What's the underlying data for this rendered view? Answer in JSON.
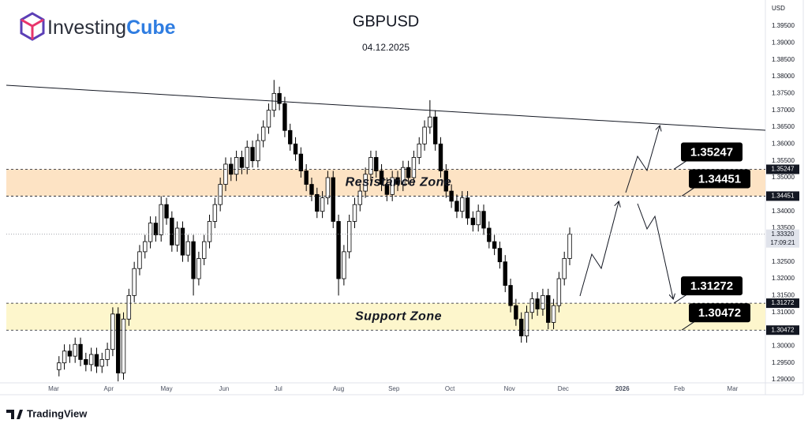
{
  "branding": {
    "part1": "Investing",
    "part2": "Cube"
  },
  "footer": "TradingView",
  "chart_data": {
    "type": "candlestick",
    "title": "GBPUSD",
    "subtitle": "04.12.2025",
    "currency": "USD",
    "grid": false,
    "up_color": "#ffffff",
    "down_color": "#000000",
    "outline_color": "#000000",
    "ylim": [
      1.289,
      1.401
    ],
    "xlim": [
      -9.8,
      131.4
    ],
    "yticks": [
      {
        "value": 1.29,
        "label": "1.29000"
      },
      {
        "value": 1.295,
        "label": "1.29500"
      },
      {
        "value": 1.3,
        "label": "1.30000"
      },
      {
        "value": 1.31,
        "label": "1.31000"
      },
      {
        "value": 1.315,
        "label": "1.31500"
      },
      {
        "value": 1.32,
        "label": "1.32000"
      },
      {
        "value": 1.325,
        "label": "1.32500"
      },
      {
        "value": 1.335,
        "label": "1.33500"
      },
      {
        "value": 1.34,
        "label": "1.34000"
      },
      {
        "value": 1.35,
        "label": "1.35000"
      },
      {
        "value": 1.355,
        "label": "1.35500"
      },
      {
        "value": 1.36,
        "label": "1.36000"
      },
      {
        "value": 1.365,
        "label": "1.36500"
      },
      {
        "value": 1.37,
        "label": "1.37000"
      },
      {
        "value": 1.375,
        "label": "1.37500"
      },
      {
        "value": 1.38,
        "label": "1.38000"
      },
      {
        "value": 1.385,
        "label": "1.38500"
      },
      {
        "value": 1.39,
        "label": "1.39000"
      },
      {
        "value": 1.395,
        "label": "1.39500"
      }
    ],
    "xticks": [
      {
        "value": -1.0,
        "label": "Mar"
      },
      {
        "value": 9.25,
        "label": "Apr"
      },
      {
        "value": 20.0,
        "label": "May"
      },
      {
        "value": 30.7,
        "label": "Jun"
      },
      {
        "value": 40.8,
        "label": "Jul"
      },
      {
        "value": 52.0,
        "label": "Aug"
      },
      {
        "value": 62.3,
        "label": "Sep"
      },
      {
        "value": 72.7,
        "label": "Oct"
      },
      {
        "value": 83.8,
        "label": "Nov"
      },
      {
        "value": 93.8,
        "label": "Dec"
      },
      {
        "value": 104.8,
        "label": "2026"
      },
      {
        "value": 115.4,
        "label": "Feb"
      },
      {
        "value": 125.3,
        "label": "Mar"
      }
    ],
    "zones": [
      {
        "name": "Resistance Zone",
        "color": "#fde3c4",
        "upper": {
          "value": 1.35247,
          "label": "1.35247"
        },
        "lower": {
          "value": 1.34451,
          "label": "1.34451"
        }
      },
      {
        "name": "Support Zone",
        "color": "#fdf6cc",
        "upper": {
          "value": 1.31272,
          "label": "1.31272"
        },
        "lower": {
          "value": 1.30472,
          "label": "1.30472"
        }
      }
    ],
    "last_price": {
      "value": 1.3332,
      "label": "1.33320"
    },
    "countdown": "17:09:21",
    "open": [
      1.293,
      1.295,
      1.2985,
      1.297,
      1.3005,
      1.296,
      1.2945,
      1.2975,
      1.294,
      1.296,
      1.299,
      1.3095,
      1.292,
      1.308,
      1.315,
      1.323,
      1.328,
      1.331,
      1.3365,
      1.333,
      1.342,
      1.338,
      1.33,
      1.335,
      1.327,
      1.331,
      1.32,
      1.326,
      1.331,
      1.337,
      1.342,
      1.348,
      1.354,
      1.351,
      1.356,
      1.353,
      1.359,
      1.355,
      1.361,
      1.365,
      1.37,
      1.375,
      1.372,
      1.364,
      1.36,
      1.357,
      1.352,
      1.348,
      1.345,
      1.34,
      1.344,
      1.35,
      1.337,
      1.32,
      1.328,
      1.337,
      1.342,
      1.346,
      1.351,
      1.356,
      1.352,
      1.348,
      1.345,
      1.35,
      1.348,
      1.353,
      1.35,
      1.356,
      1.36,
      1.365,
      1.368,
      1.36,
      1.352,
      1.346,
      1.343,
      1.34,
      1.344,
      1.338,
      1.336,
      1.34,
      1.335,
      1.331,
      1.329,
      1.325,
      1.318,
      1.312,
      1.308,
      1.303,
      1.31,
      1.314,
      1.311,
      1.315,
      1.307,
      1.312,
      1.32,
      1.326
    ],
    "high": [
      1.297,
      1.3005,
      1.3005,
      1.3025,
      1.3025,
      1.298,
      1.2995,
      1.2995,
      1.298,
      1.301,
      1.3115,
      1.3115,
      1.31,
      1.317,
      1.325,
      1.33,
      1.333,
      1.3385,
      1.3385,
      1.3445,
      1.344,
      1.34,
      1.337,
      1.337,
      1.333,
      1.333,
      1.328,
      1.333,
      1.339,
      1.344,
      1.35,
      1.356,
      1.356,
      1.358,
      1.358,
      1.361,
      1.361,
      1.363,
      1.367,
      1.372,
      1.379,
      1.377,
      1.374,
      1.366,
      1.362,
      1.359,
      1.354,
      1.35,
      1.347,
      1.346,
      1.352,
      1.352,
      1.339,
      1.33,
      1.339,
      1.344,
      1.348,
      1.353,
      1.358,
      1.358,
      1.354,
      1.35,
      1.352,
      1.352,
      1.355,
      1.355,
      1.358,
      1.362,
      1.367,
      1.373,
      1.37,
      1.362,
      1.354,
      1.348,
      1.345,
      1.346,
      1.346,
      1.34,
      1.342,
      1.342,
      1.337,
      1.333,
      1.331,
      1.327,
      1.32,
      1.314,
      1.31,
      1.312,
      1.316,
      1.316,
      1.317,
      1.317,
      1.314,
      1.322,
      1.328,
      1.3352
    ],
    "low": [
      1.291,
      1.293,
      1.295,
      1.295,
      1.294,
      1.2925,
      1.2925,
      1.292,
      1.292,
      1.294,
      1.297,
      1.2895,
      1.29,
      1.306,
      1.313,
      1.321,
      1.326,
      1.329,
      1.331,
      1.331,
      1.336,
      1.328,
      1.328,
      1.325,
      1.325,
      1.315,
      1.318,
      1.324,
      1.329,
      1.335,
      1.34,
      1.346,
      1.349,
      1.349,
      1.351,
      1.351,
      1.353,
      1.353,
      1.359,
      1.363,
      1.368,
      1.37,
      1.362,
      1.358,
      1.355,
      1.35,
      1.346,
      1.343,
      1.338,
      1.338,
      1.342,
      1.335,
      1.315,
      1.318,
      1.326,
      1.335,
      1.34,
      1.344,
      1.349,
      1.35,
      1.346,
      1.343,
      1.343,
      1.346,
      1.346,
      1.348,
      1.348,
      1.354,
      1.358,
      1.363,
      1.358,
      1.35,
      1.344,
      1.341,
      1.338,
      1.338,
      1.336,
      1.334,
      1.334,
      1.333,
      1.329,
      1.327,
      1.323,
      1.316,
      1.31,
      1.306,
      1.301,
      1.301,
      1.308,
      1.309,
      1.309,
      1.305,
      1.305,
      1.31,
      1.318,
      1.324
    ],
    "close": [
      1.295,
      1.2985,
      1.297,
      1.3005,
      1.296,
      1.2945,
      1.2975,
      1.294,
      1.296,
      1.299,
      1.3095,
      1.292,
      1.308,
      1.315,
      1.323,
      1.328,
      1.331,
      1.3365,
      1.333,
      1.342,
      1.338,
      1.33,
      1.335,
      1.327,
      1.331,
      1.32,
      1.326,
      1.331,
      1.337,
      1.342,
      1.348,
      1.354,
      1.351,
      1.356,
      1.353,
      1.359,
      1.355,
      1.361,
      1.365,
      1.37,
      1.375,
      1.372,
      1.364,
      1.36,
      1.357,
      1.352,
      1.348,
      1.345,
      1.34,
      1.344,
      1.35,
      1.337,
      1.32,
      1.328,
      1.337,
      1.342,
      1.346,
      1.351,
      1.356,
      1.352,
      1.348,
      1.345,
      1.35,
      1.348,
      1.353,
      1.35,
      1.356,
      1.36,
      1.365,
      1.368,
      1.36,
      1.352,
      1.346,
      1.343,
      1.34,
      1.344,
      1.338,
      1.336,
      1.34,
      1.335,
      1.331,
      1.329,
      1.325,
      1.318,
      1.312,
      1.308,
      1.303,
      1.31,
      1.314,
      1.311,
      1.315,
      1.307,
      1.312,
      1.32,
      1.326,
      1.3332
    ]
  }
}
